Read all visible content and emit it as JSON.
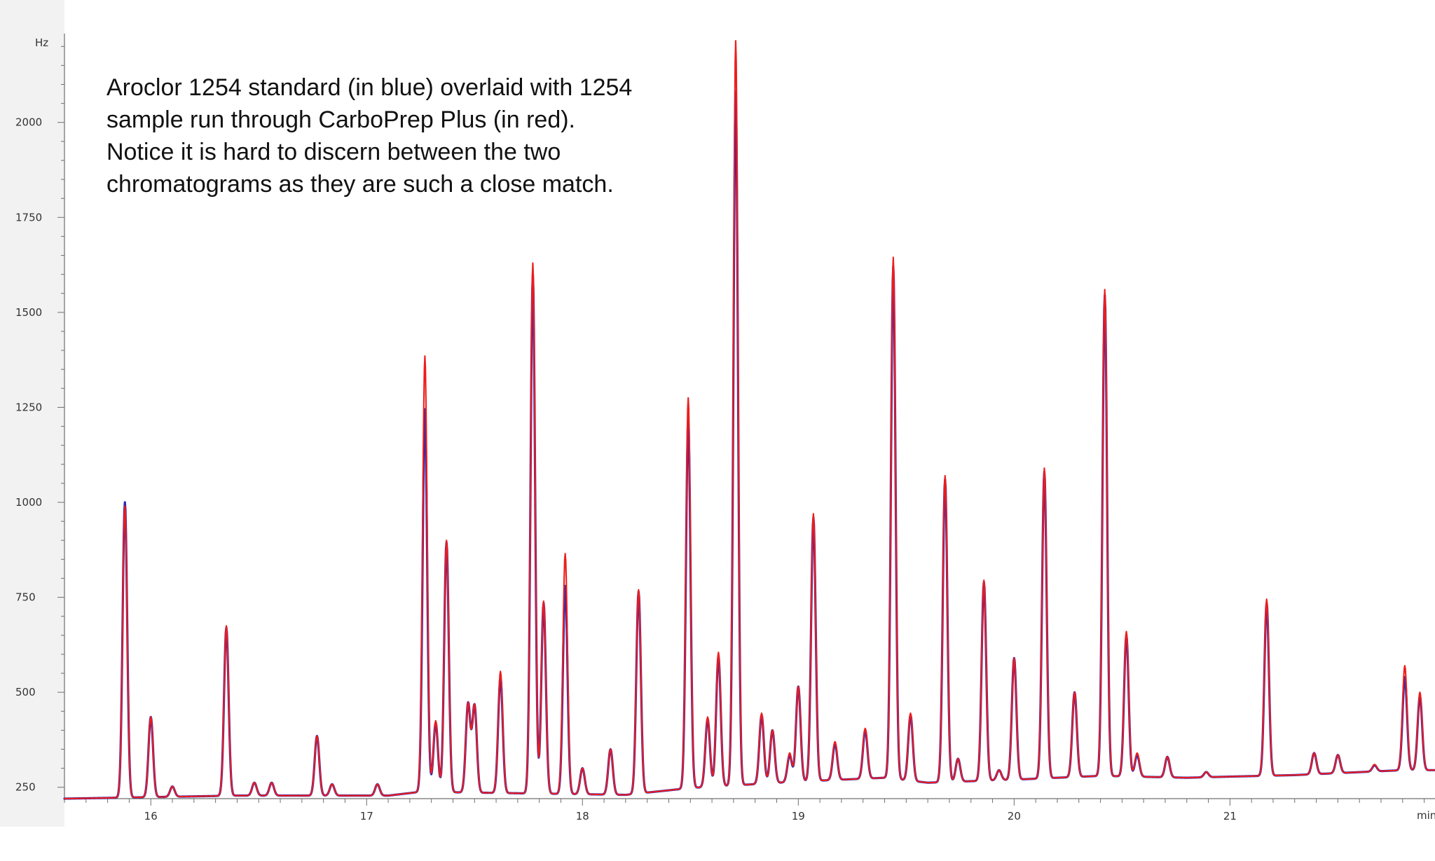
{
  "chart_data": {
    "type": "line",
    "annotation": "Aroclor 1254 standard (in blue) overlaid with 1254 sample run through CarboPrep Plus (in red).  Notice it is hard to discern between the two chromatograms as they are such a close match.",
    "xlabel": "min",
    "ylabel": "Hz",
    "xlim": [
      15.6,
      21.95
    ],
    "ylim": [
      220,
      2230
    ],
    "x_ticks": [
      16,
      17,
      18,
      19,
      20,
      21
    ],
    "y_ticks": [
      250,
      500,
      750,
      1000,
      1250,
      1500,
      1750,
      2000
    ],
    "grid": false,
    "series": [
      {
        "name": "Aroclor 1254 standard",
        "color": "#1f1fb0",
        "baseline": [
          [
            15.6,
            220
          ],
          [
            16.4,
            228
          ],
          [
            17.1,
            228
          ],
          [
            17.25,
            238
          ],
          [
            18.2,
            230
          ],
          [
            18.5,
            248
          ],
          [
            19.0,
            265
          ],
          [
            19.4,
            275
          ],
          [
            19.6,
            262
          ],
          [
            20.0,
            270
          ],
          [
            20.4,
            280
          ],
          [
            20.8,
            275
          ],
          [
            21.0,
            278
          ],
          [
            21.3,
            282
          ],
          [
            21.8,
            295
          ],
          [
            21.95,
            295
          ]
        ],
        "peaks": [
          [
            15.88,
            1000
          ],
          [
            16.0,
            435
          ],
          [
            16.1,
            252
          ],
          [
            16.35,
            670
          ],
          [
            16.48,
            262
          ],
          [
            16.56,
            262
          ],
          [
            16.77,
            385
          ],
          [
            16.84,
            258
          ],
          [
            17.05,
            258
          ],
          [
            17.27,
            1245
          ],
          [
            17.32,
            420
          ],
          [
            17.37,
            895
          ],
          [
            17.47,
            470
          ],
          [
            17.5,
            465
          ],
          [
            17.62,
            540
          ],
          [
            17.77,
            1600
          ],
          [
            17.82,
            735
          ],
          [
            17.92,
            780
          ],
          [
            18.0,
            300
          ],
          [
            18.13,
            350
          ],
          [
            18.26,
            765
          ],
          [
            18.49,
            1220
          ],
          [
            18.58,
            430
          ],
          [
            18.63,
            595
          ],
          [
            18.71,
            2080
          ],
          [
            18.83,
            440
          ],
          [
            18.88,
            400
          ],
          [
            18.96,
            335
          ],
          [
            19.0,
            515
          ],
          [
            19.07,
            960
          ],
          [
            19.17,
            365
          ],
          [
            19.31,
            400
          ],
          [
            19.44,
            1620
          ],
          [
            19.52,
            440
          ],
          [
            19.68,
            1060
          ],
          [
            19.74,
            325
          ],
          [
            19.86,
            790
          ],
          [
            19.93,
            295
          ],
          [
            20.0,
            590
          ],
          [
            20.14,
            1080
          ],
          [
            20.28,
            500
          ],
          [
            20.42,
            1545
          ],
          [
            20.52,
            650
          ],
          [
            20.57,
            335
          ],
          [
            20.71,
            330
          ],
          [
            20.89,
            290
          ],
          [
            21.17,
            735
          ],
          [
            21.39,
            340
          ],
          [
            21.5,
            335
          ],
          [
            21.67,
            308
          ],
          [
            21.81,
            540
          ],
          [
            21.88,
            490
          ]
        ]
      },
      {
        "name": "1254 sample run through CarboPrep Plus",
        "color": "#ee1c1c",
        "baseline": [
          [
            15.6,
            220
          ],
          [
            16.4,
            228
          ],
          [
            17.1,
            228
          ],
          [
            17.25,
            238
          ],
          [
            18.2,
            230
          ],
          [
            18.5,
            248
          ],
          [
            19.0,
            265
          ],
          [
            19.4,
            275
          ],
          [
            19.6,
            262
          ],
          [
            20.0,
            270
          ],
          [
            20.4,
            280
          ],
          [
            20.8,
            275
          ],
          [
            21.0,
            278
          ],
          [
            21.3,
            282
          ],
          [
            21.8,
            295
          ],
          [
            21.95,
            295
          ]
        ],
        "peaks": [
          [
            15.88,
            990
          ],
          [
            16.0,
            435
          ],
          [
            16.1,
            252
          ],
          [
            16.35,
            675
          ],
          [
            16.48,
            262
          ],
          [
            16.56,
            262
          ],
          [
            16.77,
            385
          ],
          [
            16.84,
            258
          ],
          [
            17.05,
            258
          ],
          [
            17.27,
            1385
          ],
          [
            17.32,
            425
          ],
          [
            17.37,
            900
          ],
          [
            17.47,
            470
          ],
          [
            17.5,
            465
          ],
          [
            17.62,
            555
          ],
          [
            17.77,
            1630
          ],
          [
            17.82,
            740
          ],
          [
            17.92,
            865
          ],
          [
            18.0,
            300
          ],
          [
            18.13,
            350
          ],
          [
            18.26,
            770
          ],
          [
            18.49,
            1275
          ],
          [
            18.58,
            435
          ],
          [
            18.63,
            605
          ],
          [
            18.71,
            2215
          ],
          [
            18.83,
            445
          ],
          [
            18.88,
            400
          ],
          [
            18.96,
            340
          ],
          [
            19.0,
            515
          ],
          [
            19.07,
            970
          ],
          [
            19.17,
            370
          ],
          [
            19.31,
            405
          ],
          [
            19.44,
            1645
          ],
          [
            19.52,
            445
          ],
          [
            19.68,
            1070
          ],
          [
            19.74,
            325
          ],
          [
            19.86,
            795
          ],
          [
            19.93,
            295
          ],
          [
            20.0,
            590
          ],
          [
            20.14,
            1090
          ],
          [
            20.28,
            500
          ],
          [
            20.42,
            1560
          ],
          [
            20.52,
            660
          ],
          [
            20.57,
            340
          ],
          [
            20.71,
            330
          ],
          [
            20.89,
            290
          ],
          [
            21.17,
            745
          ],
          [
            21.39,
            340
          ],
          [
            21.5,
            335
          ],
          [
            21.67,
            310
          ],
          [
            21.81,
            570
          ],
          [
            21.88,
            500
          ]
        ]
      }
    ]
  }
}
